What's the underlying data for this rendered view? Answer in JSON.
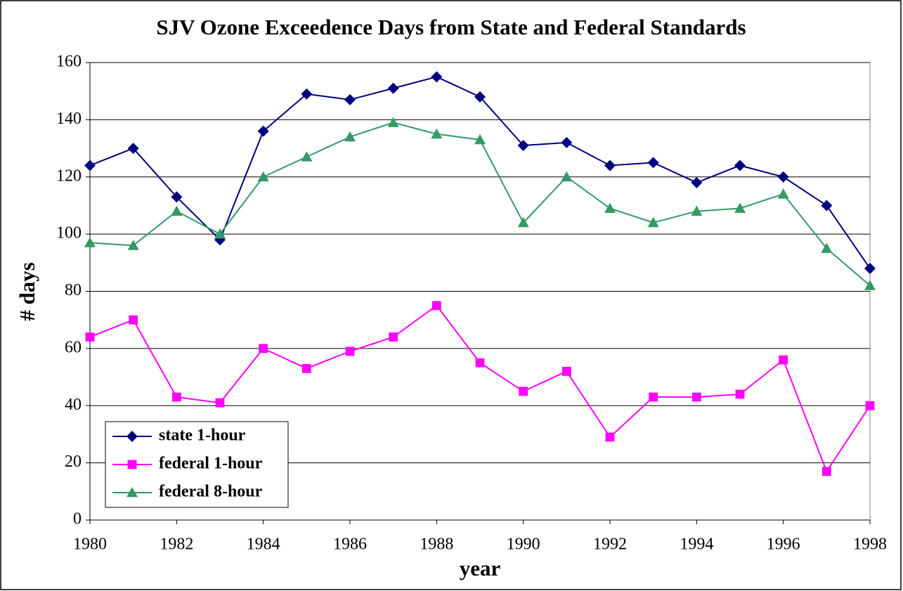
{
  "chart_data": {
    "type": "line",
    "title": "SJV Ozone Exceedence Days from State and Federal Standards",
    "xlabel": "year",
    "ylabel": "# days",
    "x": [
      1980,
      1981,
      1982,
      1983,
      1984,
      1985,
      1986,
      1987,
      1988,
      1989,
      1990,
      1991,
      1992,
      1993,
      1994,
      1995,
      1996,
      1997,
      1998
    ],
    "series": [
      {
        "name": "state 1-hour",
        "color": "#000080",
        "marker": "diamond",
        "values": [
          124,
          130,
          113,
          98,
          136,
          149,
          147,
          151,
          155,
          148,
          131,
          132,
          124,
          125,
          118,
          124,
          120,
          110,
          88
        ]
      },
      {
        "name": "federal 1-hour",
        "color": "#ff00ff",
        "marker": "square",
        "values": [
          64,
          70,
          43,
          41,
          60,
          53,
          59,
          64,
          75,
          55,
          45,
          52,
          29,
          43,
          43,
          44,
          56,
          17,
          40
        ]
      },
      {
        "name": "federal 8-hour",
        "color": "#339966",
        "marker": "triangle",
        "values": [
          97,
          96,
          108,
          100,
          120,
          127,
          134,
          139,
          135,
          133,
          104,
          120,
          109,
          104,
          108,
          109,
          114,
          95,
          82
        ]
      }
    ],
    "xlim": [
      1980,
      1998
    ],
    "xticks": [
      1980,
      1982,
      1984,
      1986,
      1988,
      1990,
      1992,
      1994,
      1996,
      1998
    ],
    "ylim": [
      0,
      160
    ],
    "yticks": [
      0,
      20,
      40,
      60,
      80,
      100,
      120,
      140,
      160
    ],
    "grid": true,
    "legend": "lower left"
  }
}
